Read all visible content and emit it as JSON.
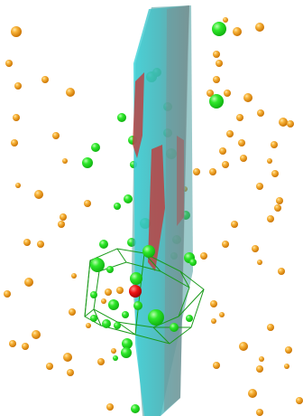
{
  "scene": {
    "background": "#ffffff",
    "colors": {
      "orange_particle": "#f5a21a",
      "orange_highlight": "#ffd27a",
      "orange_shadow": "#c96f00",
      "green_particle": "#22e61e",
      "green_highlight": "#a8ff9c",
      "red_particle": "#ee1111",
      "wireframe": "#1a9a1a",
      "plane_cyan": "#2ec9d0",
      "plane_gray": "#6f8f8f",
      "plane_red": "#c83232"
    },
    "icons": {
      "plane": "translucent-plane-icon",
      "wireframe": "wireframe-polyhedron-icon",
      "particle": "sphere-icon"
    }
  }
}
